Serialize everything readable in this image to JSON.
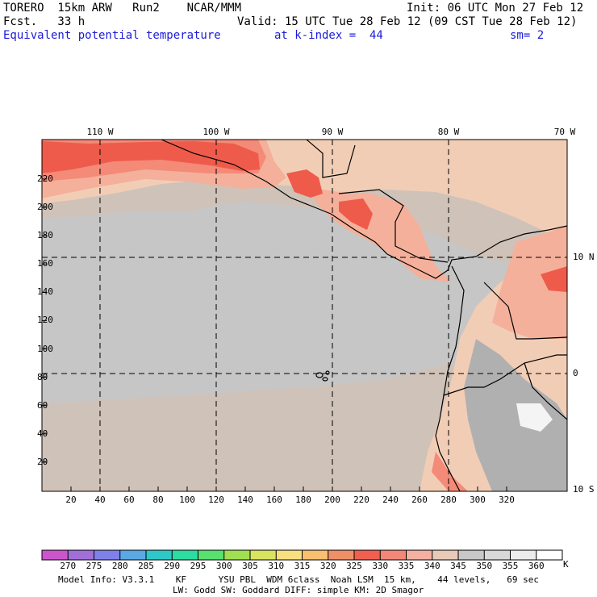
{
  "header": {
    "model": "TORERO  15km ARW   Run2    NCAR/MMM",
    "init": "Init: 06 UTC Mon 27 Feb 12",
    "fcst": "Fcst.   33 h",
    "valid": "Valid: 15 UTC Tue 28 Feb 12 (09 CST Tue 28 Feb 12)",
    "field": "Equivalent potential temperature",
    "level": "at k-index =  44",
    "smooth": "sm= 2"
  },
  "map": {
    "lon_labels": [
      {
        "text": "110 W",
        "lon": -110
      },
      {
        "text": "100 W",
        "lon": -100
      },
      {
        "text": "90 W",
        "lon": -90
      },
      {
        "text": "80 W",
        "lon": -80
      },
      {
        "text": "70 W",
        "lon": -70
      }
    ],
    "lat_labels": [
      {
        "text": "10 N",
        "lat": 10
      },
      {
        "text": "0",
        "lat": 0
      },
      {
        "text": "10 S",
        "lat": -10
      }
    ],
    "x_ticks": [
      "20",
      "40",
      "60",
      "80",
      "100",
      "120",
      "140",
      "160",
      "180",
      "200",
      "220",
      "240",
      "260",
      "280",
      "300",
      "320"
    ],
    "y_ticks": [
      "20",
      "40",
      "60",
      "80",
      "100",
      "120",
      "140",
      "160",
      "180",
      "200",
      "220"
    ],
    "colors": {
      "ocean_cool": "#c6c6c6",
      "ocean_mid": "#cfc2b9",
      "warm_340": "#f2cdb6",
      "warm_335": "#f4b09b",
      "warm_330": "#f48a78",
      "warm_325": "#ef5b4b",
      "land_cool": "#b0b0b0",
      "peak_cold": "#f4f4f4"
    }
  },
  "colorbar": {
    "unit": "K",
    "ticks": [
      "270",
      "275",
      "280",
      "285",
      "290",
      "295",
      "300",
      "305",
      "310",
      "315",
      "320",
      "325",
      "330",
      "335",
      "340",
      "345",
      "350",
      "355",
      "360"
    ],
    "colors": [
      "#cc55cc",
      "#a070d8",
      "#8080ea",
      "#5aa8e4",
      "#2ec8c8",
      "#2cdca0",
      "#58e070",
      "#a0e050",
      "#d8e460",
      "#f8e080",
      "#f8c070",
      "#f09068",
      "#f06050",
      "#f48878",
      "#f4b0a0",
      "#e8cab8",
      "#c8c8c8",
      "#d8d8d8",
      "#ececec",
      "#ffffff"
    ]
  },
  "footer": {
    "line1": "Model Info: V3.3.1    KF      YSU PBL  WDM 6class  Noah LSM  15 km,    44 levels,   69 sec",
    "line2": "LW: Godd SW: Goddard DIFF: simple KM: 2D Smagor"
  }
}
